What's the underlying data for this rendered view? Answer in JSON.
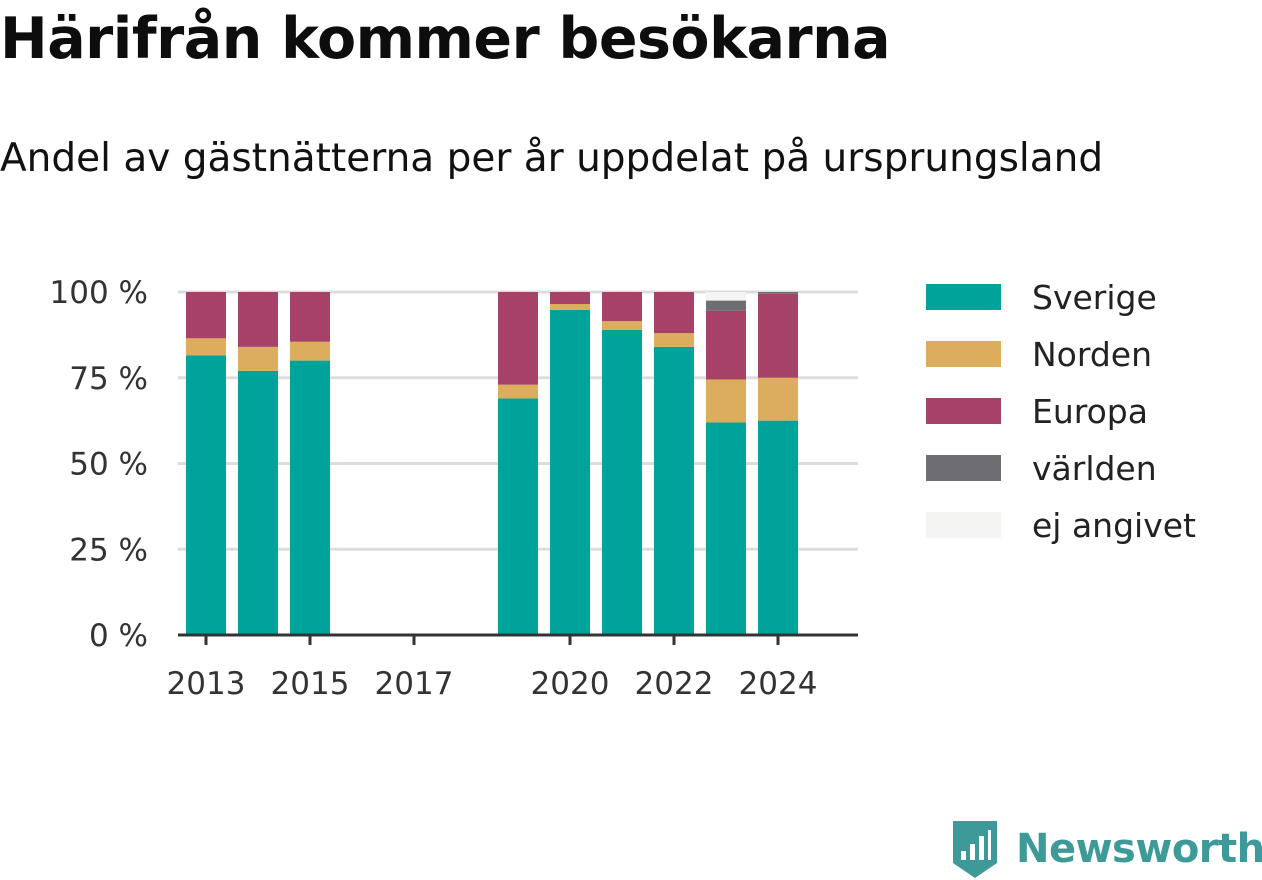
{
  "title": "Härifrån kommer besökarna",
  "subtitle": "Andel av gästnätterna per år uppdelat på ursprungsland",
  "brand": {
    "name": "Newsworthy",
    "icon": "newsworthy-logo-icon",
    "color": "#3d9a98"
  },
  "chart_data": {
    "type": "bar",
    "stacked": true,
    "x": [
      2013,
      2014,
      2015,
      2019,
      2020,
      2021,
      2022,
      2023,
      2024
    ],
    "x_tick_labels": [
      "2013",
      "2015",
      "2017",
      "2020",
      "2022",
      "2024"
    ],
    "y_tick_labels": [
      "0 %",
      "25 %",
      "50 %",
      "75 %",
      "100 %"
    ],
    "ylim": [
      0,
      100
    ],
    "grid": true,
    "legend_position": "right",
    "series": [
      {
        "name": "Sverige",
        "color": "#00a39a",
        "values": [
          81.5,
          77,
          80,
          69,
          94.8,
          89,
          84,
          62,
          62.5
        ]
      },
      {
        "name": "Norden",
        "color": "#dcad5c",
        "values": [
          5,
          7,
          5.5,
          4,
          1.7,
          2.5,
          4,
          12.5,
          12.5
        ]
      },
      {
        "name": "Europa",
        "color": "#a64267",
        "values": [
          13.5,
          16,
          14.5,
          27,
          3.5,
          8.5,
          12,
          20,
          24.5
        ]
      },
      {
        "name": "världen",
        "color": "#6e6d72",
        "values": [
          0,
          0,
          0,
          0,
          0,
          0,
          0,
          3,
          0.5
        ]
      },
      {
        "name": "ej angivet",
        "color": "#f4f4f2",
        "values": [
          0,
          0,
          0,
          0,
          0,
          0,
          0,
          2.5,
          0
        ]
      }
    ]
  }
}
